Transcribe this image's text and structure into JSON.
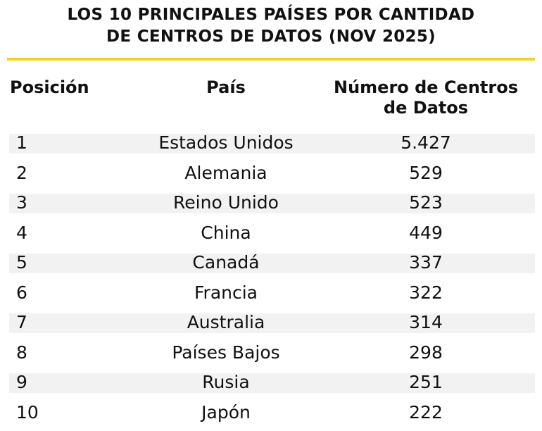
{
  "title": [
    "LOS 10 PRINCIPALES PAÍSES POR CANTIDAD",
    "DE CENTROS DE DATOS (NOV 2025)"
  ],
  "colors": {
    "accent": "#f5cf2a",
    "row_shade": "#f2f2f2"
  },
  "chart_data": {
    "type": "table",
    "title": "LOS 10 PRINCIPALES PAÍSES POR CANTIDAD DE CENTROS DE DATOS (NOV 2025)",
    "columns": [
      "Posición",
      "País",
      "Número de Centros de Datos"
    ],
    "rows": [
      {
        "pos": "1",
        "pais": "Estados Unidos",
        "num": "5.427"
      },
      {
        "pos": "2",
        "pais": "Alemania",
        "num": "529"
      },
      {
        "pos": "3",
        "pais": "Reino Unido",
        "num": "523"
      },
      {
        "pos": "4",
        "pais": "China",
        "num": "449"
      },
      {
        "pos": "5",
        "pais": "Canadá",
        "num": "337"
      },
      {
        "pos": "6",
        "pais": "Francia",
        "num": "322"
      },
      {
        "pos": "7",
        "pais": "Australia",
        "num": "314"
      },
      {
        "pos": "8",
        "pais": "Países Bajos",
        "num": "298"
      },
      {
        "pos": "9",
        "pais": "Rusia",
        "num": "251"
      },
      {
        "pos": "10",
        "pais": "Japón",
        "num": "222"
      }
    ]
  }
}
